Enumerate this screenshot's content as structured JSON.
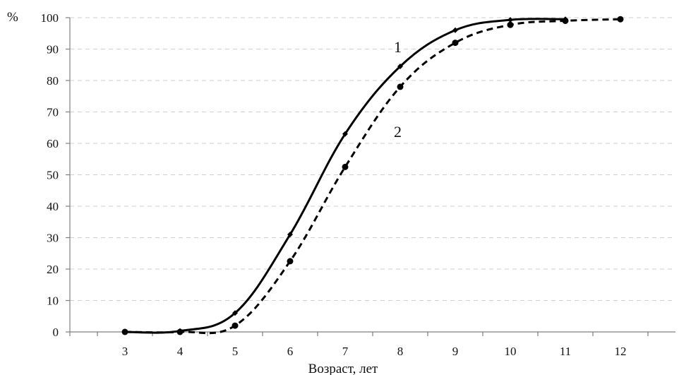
{
  "chart_data": {
    "type": "line",
    "ylabel": "%",
    "xlabel": "Возраст, лет",
    "ylim": [
      0,
      100
    ],
    "yticks": [
      "0",
      "10",
      "20",
      "30",
      "40",
      "50",
      "60",
      "70",
      "80",
      "90",
      "100"
    ],
    "xlim": [
      2,
      13
    ],
    "xticks": [
      "3",
      "4",
      "5",
      "6",
      "7",
      "8",
      "9",
      "10",
      "11",
      "12"
    ],
    "grid": "horizontal dashed",
    "series": [
      {
        "name": "1",
        "line_style": "solid",
        "marker": "diamond",
        "color": "#000000",
        "x": [
          3,
          4,
          5,
          6,
          7,
          8,
          9,
          10,
          11
        ],
        "y": [
          0,
          0.3,
          6,
          31,
          63,
          84.5,
          96,
          99.3,
          99.5
        ]
      },
      {
        "name": "2",
        "line_style": "dashed",
        "marker": "circle",
        "color": "#000000",
        "x": [
          3,
          4,
          5,
          6,
          7,
          8,
          9,
          10,
          11,
          12
        ],
        "y": [
          0,
          0,
          2,
          22.5,
          52.5,
          78,
          92,
          97.7,
          99,
          99.5
        ]
      }
    ]
  }
}
